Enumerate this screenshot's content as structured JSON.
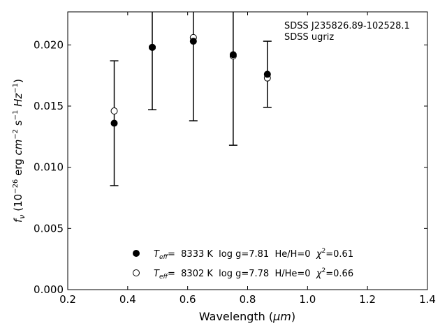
{
  "chart_data": {
    "type": "scatter",
    "title": "",
    "xlabel_main": "Wavelength (",
    "xlabel_unit": "μm",
    "ylabel": {
      "f": "f",
      "nu": "ν",
      "open": " (10",
      "exp1": "−26",
      "mid": " erg ",
      "cm": "cm",
      "exp2": "−2",
      "s": " s",
      "exp3": "−1",
      "hz": " Hz",
      "exp4": "−1",
      "close": ")"
    },
    "xlim": [
      0.2,
      1.4
    ],
    "ylim": [
      0.0,
      0.0227
    ],
    "xticks": [
      0.2,
      0.4,
      0.6,
      0.8,
      1.0,
      1.2,
      1.4
    ],
    "xtick_labels": [
      "0.2",
      "0.4",
      "0.6",
      "0.8",
      "1.0",
      "1.2",
      "1.4"
    ],
    "yticks": [
      0.0,
      0.005,
      0.01,
      0.015,
      0.02
    ],
    "ytick_labels": [
      "0.000",
      "0.005",
      "0.010",
      "0.015",
      "0.020"
    ],
    "annotation": [
      "SDSS J235826.89-102528.1",
      "SDSS ugriz"
    ],
    "observed": [
      {
        "x": 0.355,
        "y": 0.0136,
        "err": 0.0051
      },
      {
        "x": 0.482,
        "y": 0.0198,
        "err": 0.0051
      },
      {
        "x": 0.619,
        "y": 0.0203,
        "err": 0.0065
      },
      {
        "x": 0.752,
        "y": 0.0192,
        "err": 0.0074
      },
      {
        "x": 0.866,
        "y": 0.0176,
        "err": 0.0027
      }
    ],
    "series": [
      {
        "name": "He/H=0",
        "marker": "filled",
        "legend": {
          "t": "T",
          "sub": "eff",
          "rest": "=  8333 K  log g=7.81  He/H=0  ",
          "chi": "χ",
          "sup": "2",
          "val": "=0.61"
        },
        "x": [
          0.355,
          0.482,
          0.619,
          0.752,
          0.866
        ],
        "y": [
          0.0136,
          0.0198,
          0.0203,
          0.0192,
          0.0176
        ]
      },
      {
        "name": "H/He=0",
        "marker": "open",
        "legend": {
          "t": "T",
          "sub": "eff",
          "rest": "=  8302 K  log g=7.78  H/He=0  ",
          "chi": "χ",
          "sup": "2",
          "val": "=0.66"
        },
        "x": [
          0.355,
          0.482,
          0.619,
          0.752,
          0.866
        ],
        "y": [
          0.0146,
          0.0198,
          0.0206,
          0.0191,
          0.0173
        ]
      }
    ],
    "legend_position": "lower-center",
    "grid": false
  }
}
